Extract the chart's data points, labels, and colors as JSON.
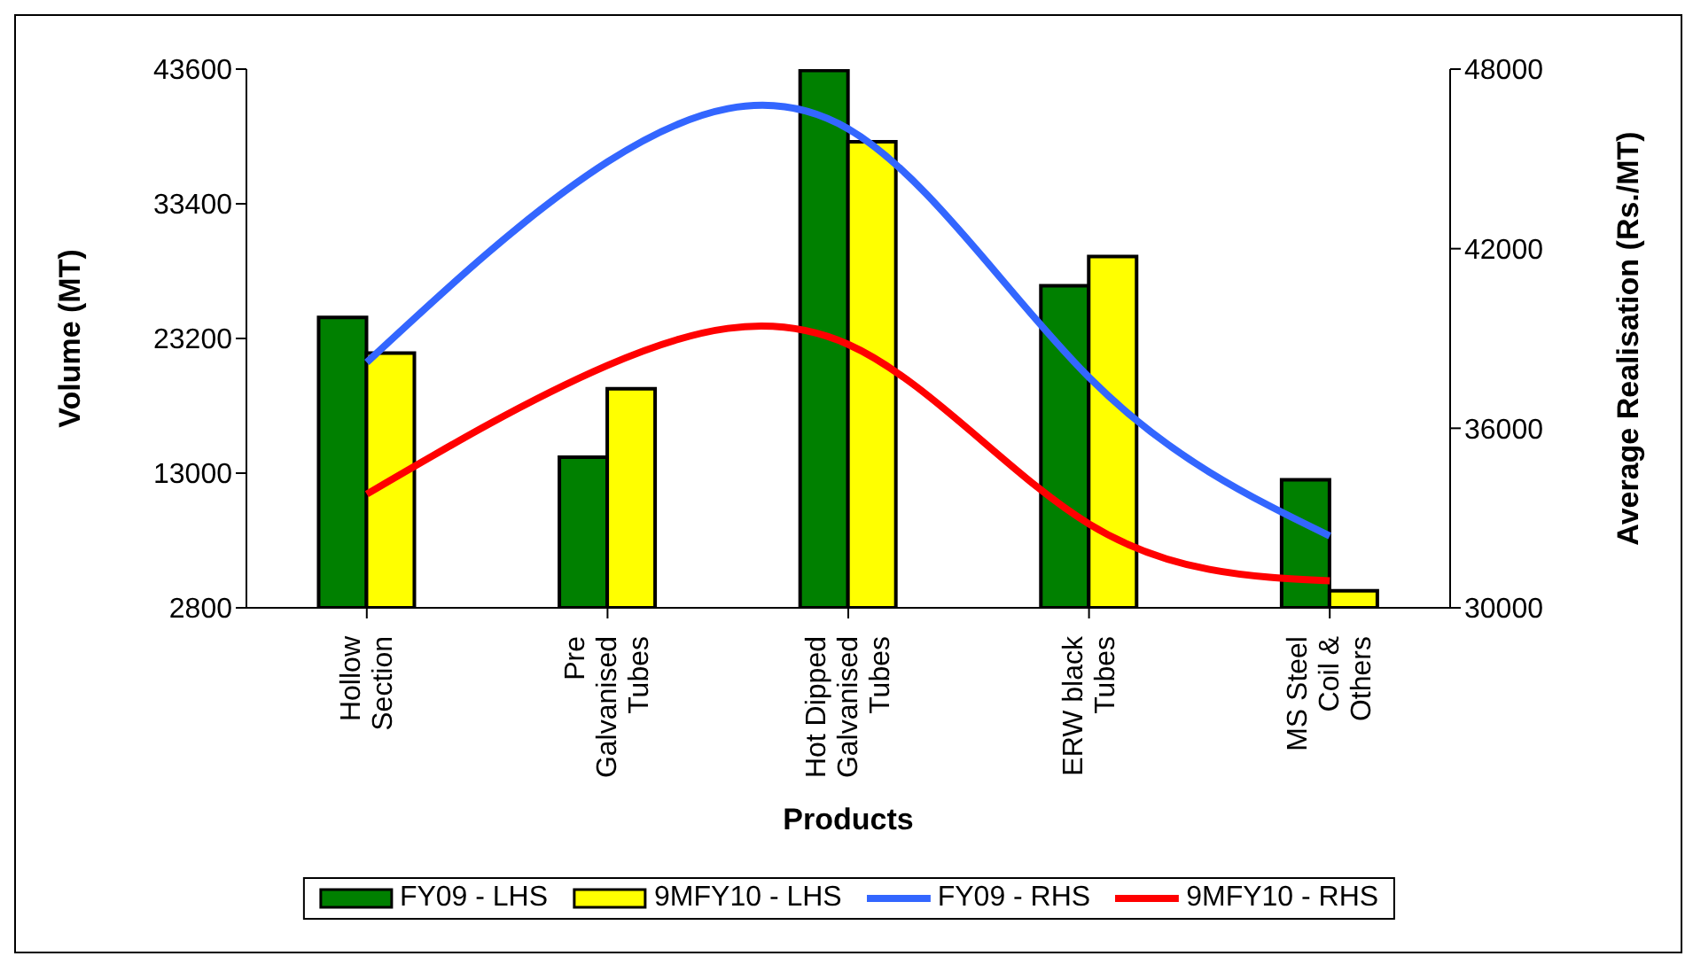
{
  "chart_data": {
    "type": "bar",
    "xlabel": "Products",
    "ylabel": "Volume (MT)",
    "y2label": "Average Realisation (Rs./MT)",
    "categories": [
      "Hollow Section",
      "Pre Galvanised Tubes",
      "Hot Dipped Galvanised Tubes",
      "ERW black Tubes",
      "MS Steel Coil & Others"
    ],
    "series": [
      {
        "name": "FY09 - LHS",
        "color": "#008000",
        "values": [
          24800,
          14200,
          43500,
          27200,
          12500
        ]
      },
      {
        "name": "9MFY10 - LHS",
        "color": "#ffff00",
        "values": [
          22100,
          19400,
          38100,
          29400,
          4100
        ]
      },
      {
        "name": "FY09 - RHS",
        "type": "line",
        "axis": "y2",
        "color": "#3366ff",
        "values": [
          38200,
          44900,
          46000,
          37700,
          32400
        ]
      },
      {
        "name": "9MFY10 - RHS",
        "type": "line",
        "axis": "y2",
        "color": "#ff0000",
        "values": [
          33800,
          38100,
          38800,
          32800,
          30900
        ]
      }
    ],
    "ylim": [
      2800,
      43600
    ],
    "yticks": [
      2800,
      13000,
      23200,
      33400,
      43600
    ],
    "y2lim": [
      30000,
      48000
    ],
    "y2ticks": [
      30000,
      36000,
      42000,
      48000
    ],
    "grid": false,
    "legend": "bottom",
    "marker": "none",
    "line_style": "solid"
  }
}
